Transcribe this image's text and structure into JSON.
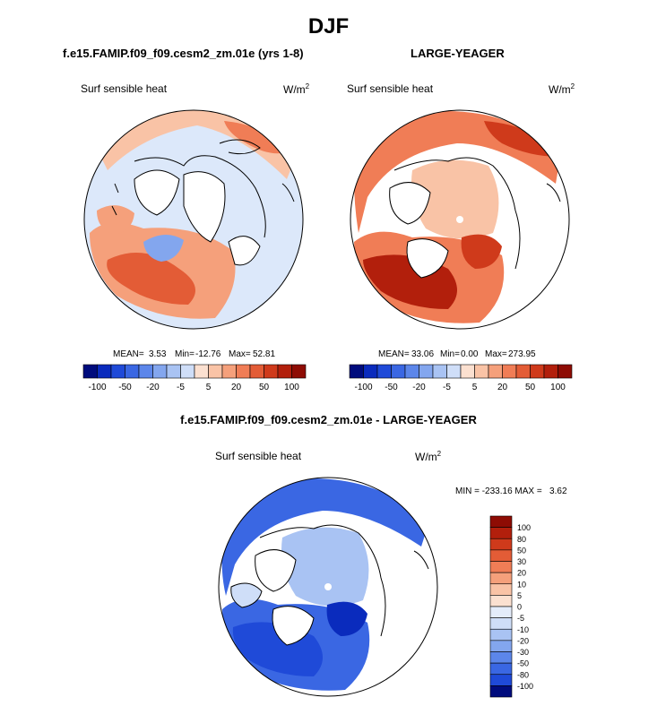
{
  "page_title": "DJF",
  "chart_data": [
    {
      "type": "polar-map",
      "panel_title": "f.e15.FAMIP.f09_f09.cesm2_zm.01e (yrs 1-8)",
      "variable": "Surf sensible heat",
      "units": "W/m",
      "units_exponent": "2",
      "stats": {
        "mean_label": "MEAN=",
        "mean": "3.53",
        "min_label": "Min=",
        "min": "-12.76",
        "max_label": "Max=",
        "max": "52.81"
      },
      "colorbar": {
        "orientation": "horizontal",
        "tick_labels": [
          "-100",
          "-50",
          "-20",
          "-5",
          "5",
          "20",
          "50",
          "100"
        ],
        "colors": [
          "#000c7d",
          "#0a2bbd",
          "#1f4ad8",
          "#3a67e3",
          "#5c86ea",
          "#83a6ee",
          "#a9c3f3",
          "#cfdef8",
          "#fbe0d0",
          "#f9c3a6",
          "#f5a07b",
          "#f07d56",
          "#e35c36",
          "#cf3a1b",
          "#b21f0c",
          "#8e0c04"
        ]
      }
    },
    {
      "type": "polar-map",
      "panel_title": "LARGE-YEAGER",
      "variable": "Surf sensible heat",
      "units": "W/m",
      "units_exponent": "2",
      "stats": {
        "mean_label": "MEAN=",
        "mean": "33.06",
        "min_label": "Min=",
        "min": "0.00",
        "max_label": "Max=",
        "max": "273.95"
      },
      "colorbar": {
        "orientation": "horizontal",
        "tick_labels": [
          "-100",
          "-50",
          "-20",
          "-5",
          "5",
          "20",
          "50",
          "100"
        ],
        "colors": [
          "#000c7d",
          "#0a2bbd",
          "#1f4ad8",
          "#3a67e3",
          "#5c86ea",
          "#83a6ee",
          "#a9c3f3",
          "#cfdef8",
          "#fbe0d0",
          "#f9c3a6",
          "#f5a07b",
          "#f07d56",
          "#e35c36",
          "#cf3a1b",
          "#b21f0c",
          "#8e0c04"
        ]
      }
    },
    {
      "type": "polar-map",
      "panel_title": "f.e15.FAMIP.f09_f09.cesm2_zm.01e - LARGE-YEAGER",
      "variable": "Surf sensible heat",
      "units": "W/m",
      "units_exponent": "2",
      "stats": {
        "text": "MIN = -233.16 MAX =   3.62"
      },
      "colorbar": {
        "orientation": "vertical",
        "tick_labels": [
          "100",
          "80",
          "50",
          "30",
          "20",
          "10",
          "5",
          "0",
          "-5",
          "-10",
          "-20",
          "-30",
          "-50",
          "-80",
          "-100"
        ],
        "colors": [
          "#8e0c04",
          "#b21f0c",
          "#cf3a1b",
          "#e35c36",
          "#f07d56",
          "#f5a07b",
          "#f9c3a6",
          "#fbe0d0",
          "#e4ecfa",
          "#cfdef8",
          "#a9c3f3",
          "#83a6ee",
          "#5c86ea",
          "#3a67e3",
          "#1f4ad8",
          "#000c7d"
        ]
      }
    }
  ]
}
